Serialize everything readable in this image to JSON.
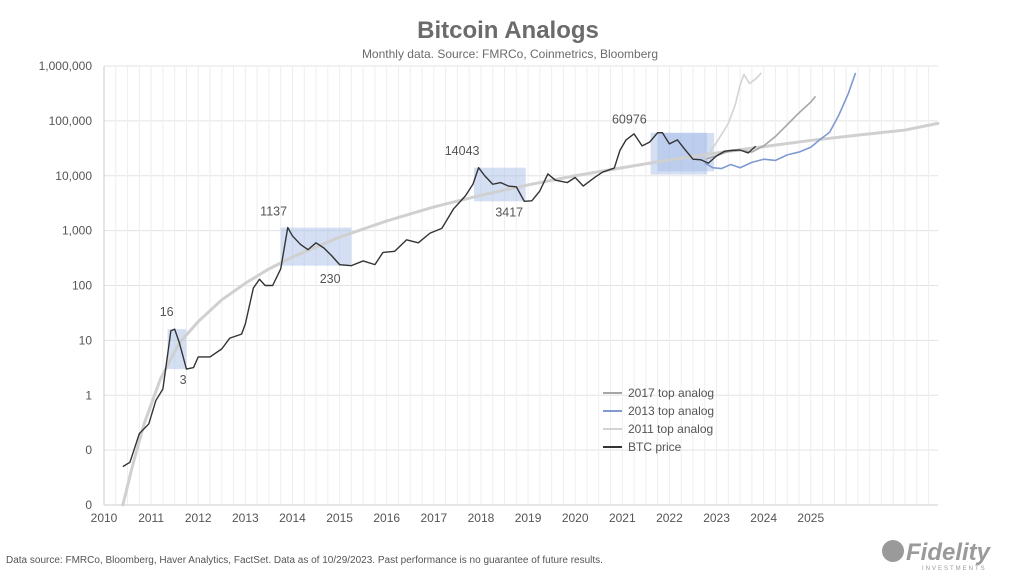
{
  "chart_data": {
    "type": "line",
    "title": "Bitcoin Analogs",
    "subtitle": "Monthly data.  Source: FMRCo, Coinmetrics, Bloomberg",
    "y_scale": "log",
    "ylim": [
      0.01,
      1000000
    ],
    "xlim": [
      2010,
      2027.7
    ],
    "grid": true,
    "x_ticks": [
      "2010",
      "2011",
      "2012",
      "2013",
      "2014",
      "2015",
      "2016",
      "2017",
      "2018",
      "2019",
      "2020",
      "2021",
      "2022",
      "2023",
      "2024",
      "2025"
    ],
    "y_ticks": [
      {
        "value": 1000000,
        "label": "1,000,000"
      },
      {
        "value": 100000,
        "label": "100,000"
      },
      {
        "value": 10000,
        "label": "10,000"
      },
      {
        "value": 1000,
        "label": "1,000"
      },
      {
        "value": 100,
        "label": "100"
      },
      {
        "value": 10,
        "label": "10"
      },
      {
        "value": 1,
        "label": "1"
      },
      {
        "value": 0.1,
        "label": "0"
      },
      {
        "value": 0.01,
        "label": "0"
      }
    ],
    "series": [
      {
        "name": "2017 top analog",
        "color": "#a6a6a6",
        "width": 1.6,
        "points": [
          [
            2022.75,
            20000
          ],
          [
            2023.0,
            23000
          ],
          [
            2023.25,
            28000
          ],
          [
            2023.5,
            29000
          ],
          [
            2023.75,
            27000
          ],
          [
            2024.0,
            35000
          ],
          [
            2024.25,
            52000
          ],
          [
            2024.5,
            85000
          ],
          [
            2024.75,
            140000
          ],
          [
            2025.0,
            220000
          ],
          [
            2025.1,
            280000
          ]
        ]
      },
      {
        "name": "2013 top analog",
        "color": "#7f9ad0",
        "width": 1.6,
        "points": [
          [
            2022.75,
            17000
          ],
          [
            2022.92,
            14000
          ],
          [
            2023.1,
            13500
          ],
          [
            2023.3,
            16000
          ],
          [
            2023.5,
            14000
          ],
          [
            2023.75,
            17500
          ],
          [
            2024.0,
            20000
          ],
          [
            2024.25,
            19000
          ],
          [
            2024.5,
            24000
          ],
          [
            2024.75,
            27000
          ],
          [
            2025.0,
            33000
          ],
          [
            2025.2,
            46000
          ],
          [
            2025.4,
            62000
          ],
          [
            2025.6,
            130000
          ],
          [
            2025.8,
            320000
          ],
          [
            2025.95,
            750000
          ]
        ]
      },
      {
        "name": "2011 top analog",
        "color": "#d3d3d3",
        "width": 1.6,
        "points": [
          [
            2022.75,
            20000
          ],
          [
            2022.95,
            35000
          ],
          [
            2023.1,
            55000
          ],
          [
            2023.25,
            90000
          ],
          [
            2023.4,
            200000
          ],
          [
            2023.5,
            450000
          ],
          [
            2023.58,
            700000
          ],
          [
            2023.7,
            480000
          ],
          [
            2023.85,
            600000
          ],
          [
            2023.95,
            750000
          ]
        ]
      },
      {
        "name": "BTC price",
        "color": "#333333",
        "width": 1.4,
        "points": [
          [
            2010.4,
            0.05
          ],
          [
            2010.55,
            0.06
          ],
          [
            2010.75,
            0.2
          ],
          [
            2010.95,
            0.3
          ],
          [
            2011.1,
            0.8
          ],
          [
            2011.25,
            1.3
          ],
          [
            2011.42,
            15
          ],
          [
            2011.5,
            16
          ],
          [
            2011.6,
            9
          ],
          [
            2011.75,
            3
          ],
          [
            2011.9,
            3.2
          ],
          [
            2012.0,
            5
          ],
          [
            2012.25,
            5
          ],
          [
            2012.5,
            7
          ],
          [
            2012.67,
            11
          ],
          [
            2012.92,
            13
          ],
          [
            2013.0,
            20
          ],
          [
            2013.17,
            90
          ],
          [
            2013.3,
            130
          ],
          [
            2013.42,
            100
          ],
          [
            2013.58,
            100
          ],
          [
            2013.75,
            200
          ],
          [
            2013.9,
            1137
          ],
          [
            2014.0,
            800
          ],
          [
            2014.17,
            560
          ],
          [
            2014.33,
            450
          ],
          [
            2014.5,
            600
          ],
          [
            2014.67,
            480
          ],
          [
            2014.83,
            350
          ],
          [
            2015.0,
            240
          ],
          [
            2015.25,
            230
          ],
          [
            2015.5,
            280
          ],
          [
            2015.75,
            240
          ],
          [
            2015.92,
            400
          ],
          [
            2016.17,
            420
          ],
          [
            2016.42,
            680
          ],
          [
            2016.67,
            600
          ],
          [
            2016.92,
            900
          ],
          [
            2017.17,
            1100
          ],
          [
            2017.42,
            2500
          ],
          [
            2017.67,
            4300
          ],
          [
            2017.83,
            7000
          ],
          [
            2017.95,
            14043
          ],
          [
            2018.08,
            10000
          ],
          [
            2018.25,
            7000
          ],
          [
            2018.42,
            7500
          ],
          [
            2018.58,
            6500
          ],
          [
            2018.75,
            6300
          ],
          [
            2018.92,
            3417
          ],
          [
            2019.08,
            3500
          ],
          [
            2019.25,
            5300
          ],
          [
            2019.42,
            10800
          ],
          [
            2019.58,
            8300
          ],
          [
            2019.83,
            7500
          ],
          [
            2020.0,
            9300
          ],
          [
            2020.17,
            6500
          ],
          [
            2020.42,
            9400
          ],
          [
            2020.58,
            11600
          ],
          [
            2020.83,
            13800
          ],
          [
            2020.95,
            29000
          ],
          [
            2021.08,
            45000
          ],
          [
            2021.25,
            58000
          ],
          [
            2021.42,
            35000
          ],
          [
            2021.58,
            41000
          ],
          [
            2021.75,
            61000
          ],
          [
            2021.85,
            60976
          ],
          [
            2022.0,
            38000
          ],
          [
            2022.17,
            45000
          ],
          [
            2022.33,
            30000
          ],
          [
            2022.5,
            20000
          ],
          [
            2022.67,
            19500
          ],
          [
            2022.83,
            17000
          ],
          [
            2023.0,
            23000
          ],
          [
            2023.17,
            28000
          ],
          [
            2023.33,
            29000
          ],
          [
            2023.5,
            29500
          ],
          [
            2023.67,
            26000
          ],
          [
            2023.83,
            34500
          ]
        ]
      }
    ],
    "power_law_curve": {
      "color": "#d0d0d0",
      "width": 3,
      "points": [
        [
          2010.4,
          0.01
        ],
        [
          2010.6,
          0.05
        ],
        [
          2010.85,
          0.3
        ],
        [
          2011.2,
          2
        ],
        [
          2011.6,
          9
        ],
        [
          2012.0,
          22
        ],
        [
          2012.5,
          55
        ],
        [
          2013.0,
          110
        ],
        [
          2013.5,
          200
        ],
        [
          2014.0,
          330
        ],
        [
          2015.0,
          760
        ],
        [
          2016.0,
          1500
        ],
        [
          2017.0,
          2700
        ],
        [
          2018.0,
          4400
        ],
        [
          2019.0,
          6800
        ],
        [
          2020.0,
          10000
        ],
        [
          2021.0,
          14000
        ],
        [
          2022.0,
          19500
        ],
        [
          2023.0,
          26000
        ],
        [
          2024.0,
          34000
        ],
        [
          2025.0,
          44000
        ],
        [
          2026.0,
          55000
        ],
        [
          2027.0,
          68000
        ],
        [
          2027.7,
          90000
        ]
      ]
    },
    "highlight_boxes": [
      {
        "x0": 2011.35,
        "x1": 2011.75,
        "y0": 3,
        "y1": 16
      },
      {
        "x0": 2013.75,
        "x1": 2015.25,
        "y0": 230,
        "y1": 1137
      },
      {
        "x0": 2017.85,
        "x1": 2018.95,
        "y0": 3417,
        "y1": 14043
      },
      {
        "x0": 2021.6,
        "x1": 2022.8,
        "y0": 10500,
        "y1": 61000
      },
      {
        "x0": 2021.75,
        "x1": 2022.95,
        "y0": 12000,
        "y1": 60000
      }
    ],
    "annotations": [
      {
        "text": "16",
        "x": 2011.33,
        "y": 28
      },
      {
        "text": "3",
        "x": 2011.68,
        "y": 1.6
      },
      {
        "text": "1137",
        "x": 2013.6,
        "y": 1900
      },
      {
        "text": "230",
        "x": 2014.8,
        "y": 110
      },
      {
        "text": "14043",
        "x": 2017.6,
        "y": 24000
      },
      {
        "text": "3417",
        "x": 2018.6,
        "y": 1800
      },
      {
        "text": "60976",
        "x": 2021.15,
        "y": 90000
      }
    ],
    "legend": {
      "position": "bottom-right",
      "items": [
        {
          "label": "2017 top analog",
          "color": "#a6a6a6"
        },
        {
          "label": "2013 top analog",
          "color": "#7f9ad0"
        },
        {
          "label": "2011 top analog",
          "color": "#d3d3d3"
        },
        {
          "label": "BTC price",
          "color": "#333333"
        }
      ]
    },
    "box_color": "#9fb8e6"
  },
  "footer": "Data source: FMRCo, Bloomberg, Haver Analytics, FactSet. Data as of 10/29/2023. Past performance is no guarantee of future results.",
  "logo": {
    "text": "Fidelity",
    "subtext": "INVESTMENTS"
  }
}
